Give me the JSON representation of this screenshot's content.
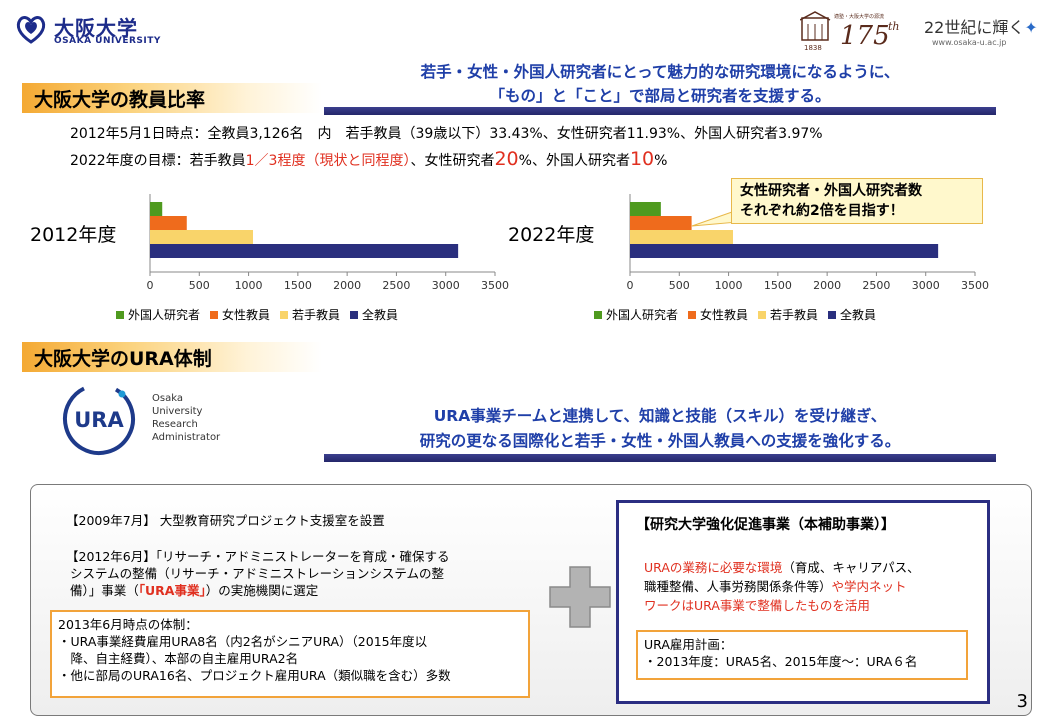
{
  "header": {
    "university_jp": "大阪大学",
    "university_en": "OSAKA UNIVERSITY",
    "anniversary_top": "適塾・大阪大学の源流",
    "anniversary_mark": "175",
    "anniversary_suffix": "th",
    "anniversary_year": "1838",
    "tagline": "22世紀に輝く",
    "url": "www.osaka-u.ac.jp"
  },
  "section1": {
    "title": "大阪大学の教員比率",
    "banner_line1": "若手・女性・外国人研究者にとって魅力的な研究環境になるように、",
    "banner_line2": "「もの」と「こと」で部局と研究者を支援する。",
    "stat_line": "2012年5月1日時点：全教員3,126名　内　若手教員（39歳以下）33.43%、女性研究者11.93%、外国人研究者3.97%",
    "goal_prefix": "2022年度の目標：若手教員",
    "goal_red1": "1／3程度（現状と同程度）",
    "goal_mid1": "、女性研究者",
    "goal_red2": "20",
    "goal_mid2": "%、外国人研究者",
    "goal_red3": "10",
    "goal_suffix": "%",
    "callout_line1": "女性研究者・外国人研究者数",
    "callout_line2": "それぞれ約2倍を目指す！"
  },
  "chart_data": [
    {
      "type": "bar",
      "orientation": "horizontal",
      "title": "2012年度",
      "categories": [
        "外国人研究者",
        "女性教員",
        "若手教員",
        "全教員"
      ],
      "values": [
        124,
        373,
        1045,
        3126
      ],
      "xlim": [
        0,
        3500
      ],
      "xticks": [
        0,
        500,
        1000,
        1500,
        2000,
        2500,
        3000,
        3500
      ],
      "colors": [
        "#4f9a1f",
        "#ef6b1c",
        "#f9d46a",
        "#2a2f7e"
      ],
      "legend_placement": "bottom"
    },
    {
      "type": "bar",
      "orientation": "horizontal",
      "title": "2022年度",
      "categories": [
        "外国人研究者",
        "女性教員",
        "若手教員",
        "全教員"
      ],
      "values": [
        313,
        625,
        1045,
        3126
      ],
      "xlim": [
        0,
        3500
      ],
      "xticks": [
        0,
        500,
        1000,
        1500,
        2000,
        2500,
        3000,
        3500
      ],
      "colors": [
        "#4f9a1f",
        "#ef6b1c",
        "#f9d46a",
        "#2a2f7e"
      ],
      "legend_placement": "bottom"
    }
  ],
  "section2": {
    "title": "大阪大学のURA体制",
    "logo_text": "URA",
    "logo_en_1": "Osaka",
    "logo_en_2": "University",
    "logo_en_3": "Research",
    "logo_en_4": "Administrator",
    "banner_line1": "URA事業チームと連携して、知識と技能（スキル）を受け継ぎ、",
    "banner_line2": "研究の更なる国際化と若手・女性・外国人教員への支援を強化する。"
  },
  "panel": {
    "left_p1": "【2009年7月】 大型教育研究プロジェクト支援室を設置",
    "left_p2_l1": "【2012年6月】「リサーチ・アドミニストレーターを育成・確保する",
    "left_p2_l2": "システムの整備（リサーチ・アドミニストレーションシステムの整",
    "left_p2_l3a": "備）」事業（",
    "left_p2_l3red": "「URA事業」",
    "left_p2_l3b": "）の実施機関に選定",
    "box_l1": "2013年6月時点の体制：",
    "box_l2": "・URA事業経費雇用URA8名（内2名がシニアURA）（2015年度以",
    "box_l3": "　降、自主経費）、本部の自主雇用URA2名",
    "box_l4": "・他に部局のURA16名、プロジェクト雇用URA（類似職を含む）多数",
    "right_title": "【研究大学強化促進事業（本補助事業）】",
    "right_l1a": "URAの業務に必要な環境",
    "right_l1b": "（育成、キャリアパス、",
    "right_l2": "職種整備、人事労務関係条件等）",
    "right_l2red": "や学内ネット",
    "right_l3": "ワークはURA事業で整備したものを活用",
    "plan_l1": "URA雇用計画：",
    "plan_l2": "・2013年度：URA5名、2015年度～：URA６名"
  },
  "page_number": "3"
}
